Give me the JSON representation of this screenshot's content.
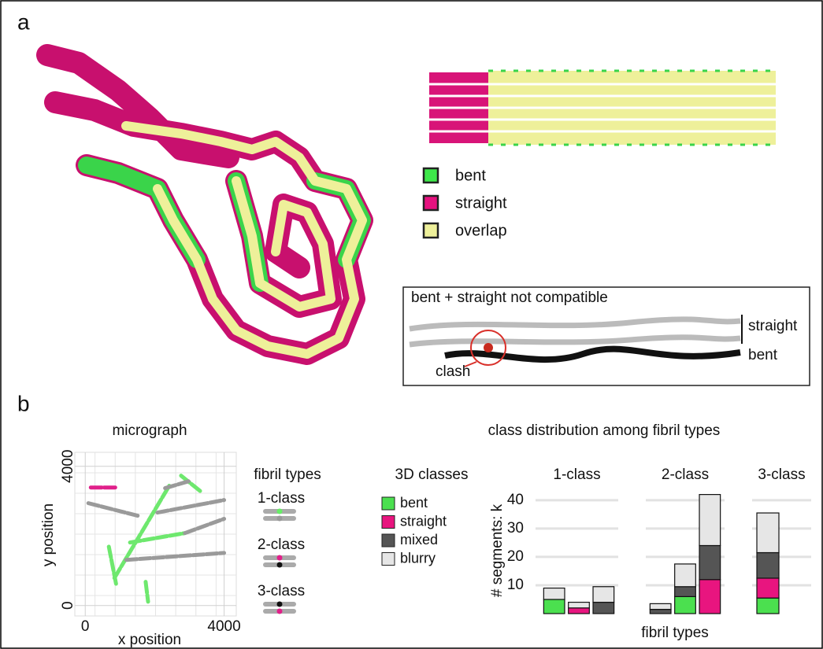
{
  "panel_labels": [
    "a",
    "b"
  ],
  "panel_a": {
    "legend": [
      {
        "label": "bent",
        "color": "#3ee84a"
      },
      {
        "label": "straight",
        "color": "#e6117f"
      },
      {
        "label": "overlap",
        "color": "#eef09a"
      }
    ],
    "inset": {
      "title": "bent + straight not compatible",
      "straight": "straight",
      "bent": "bent",
      "clash": "clash"
    }
  },
  "chart_data": [
    {
      "type": "segments",
      "title": "micrograph",
      "x_label": "x position",
      "y_label": "y position",
      "xlim": [
        -300,
        4350
      ],
      "ylim": [
        -300,
        4400
      ],
      "xticks": [
        0,
        4000
      ],
      "yticks": [
        0,
        4000
      ],
      "grid": true,
      "segments": [
        {
          "x": [
            160,
            900
          ],
          "y": [
            3390,
            3390
          ],
          "color": "#e0208a"
        },
        {
          "x": [
            90,
            1510
          ],
          "y": [
            2940,
            2580
          ],
          "color": "#9a9a9a"
        },
        {
          "x": [
            840,
            2420
          ],
          "y": [
            790,
            3440
          ],
          "color": "#6ee86e"
        },
        {
          "x": [
            2760,
            3320
          ],
          "y": [
            3730,
            3280
          ],
          "color": "#6ee86e"
        },
        {
          "x": [
            2300,
            2980
          ],
          "y": [
            3370,
            3570
          ],
          "color": "#9a9a9a"
        },
        {
          "x": [
            2080,
            4000
          ],
          "y": [
            2670,
            3030
          ],
          "color": "#9a9a9a"
        },
        {
          "x": [
            1290,
            2870
          ],
          "y": [
            1810,
            2080
          ],
          "color": "#6ee86e"
        },
        {
          "x": [
            2870,
            4000
          ],
          "y": [
            2080,
            2490
          ],
          "color": "#9a9a9a"
        },
        {
          "x": [
            1180,
            4000
          ],
          "y": [
            1310,
            1510
          ],
          "color": "#9a9a9a"
        },
        {
          "x": [
            680,
            900
          ],
          "y": [
            1690,
            560
          ],
          "color": "#6ee86e"
        },
        {
          "x": [
            1740,
            1810
          ],
          "y": [
            680,
            110
          ],
          "color": "#6ee86e"
        }
      ],
      "legend": {
        "title": "fibril types",
        "entries": [
          "1-class",
          "2-class",
          "3-class"
        ]
      }
    },
    {
      "type": "stacked-bar",
      "title": "class distribution among fibril types",
      "x_label": "fibril types",
      "y_label": "# segments: k",
      "ylim": [
        0,
        43
      ],
      "yticks": [
        10,
        20,
        30,
        40
      ],
      "grid": true,
      "legend_title": "3D classes",
      "series": [
        {
          "name": "bent",
          "color": "#4be04f"
        },
        {
          "name": "straight",
          "color": "#e8157f"
        },
        {
          "name": "mixed",
          "color": "#555555"
        },
        {
          "name": "blurry",
          "color": "#e6e6e6"
        }
      ],
      "panels": [
        {
          "title": "1-class",
          "bars": [
            [
              5,
              null,
              null,
              4
            ],
            [
              null,
              2,
              null,
              2
            ],
            [
              null,
              null,
              4,
              5.5
            ]
          ]
        },
        {
          "title": "2-class",
          "bars": [
            [
              null,
              null,
              1.5,
              2
            ],
            [
              6,
              null,
              3.5,
              8
            ],
            [
              null,
              12,
              12,
              18
            ]
          ]
        },
        {
          "title": "3-class",
          "bars": [
            [
              5.5,
              7,
              9,
              14
            ]
          ]
        }
      ]
    }
  ]
}
